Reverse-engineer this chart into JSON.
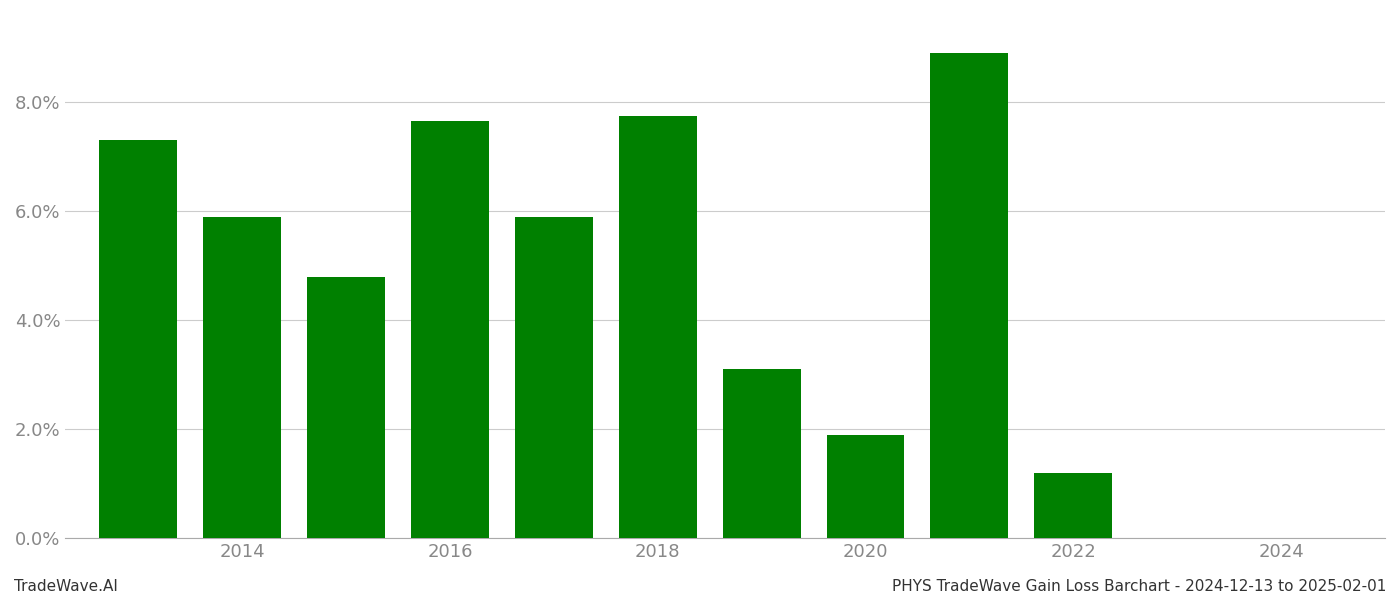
{
  "years": [
    2013,
    2014,
    2015,
    2016,
    2017,
    2018,
    2019,
    2020,
    2021,
    2022,
    2023
  ],
  "values": [
    0.073,
    0.059,
    0.048,
    0.0765,
    0.059,
    0.0775,
    0.031,
    0.019,
    0.089,
    0.012,
    0.0
  ],
  "bar_color": "#008000",
  "footer_left": "TradeWave.AI",
  "footer_right": "PHYS TradeWave Gain Loss Barchart - 2024-12-13 to 2025-02-01",
  "xlim": [
    2012.3,
    2025.0
  ],
  "ylim": [
    0.0,
    0.096
  ],
  "yticks": [
    0.0,
    0.02,
    0.04,
    0.06,
    0.08
  ],
  "xticks": [
    2014,
    2016,
    2018,
    2020,
    2022,
    2024
  ],
  "bar_width": 0.75,
  "grid_color": "#cccccc",
  "axis_color": "#aaaaaa",
  "tick_color": "#888888",
  "background_color": "#ffffff",
  "figsize": [
    14.0,
    6.0
  ],
  "dpi": 100,
  "footer_fontsize": 11,
  "tick_fontsize": 13
}
